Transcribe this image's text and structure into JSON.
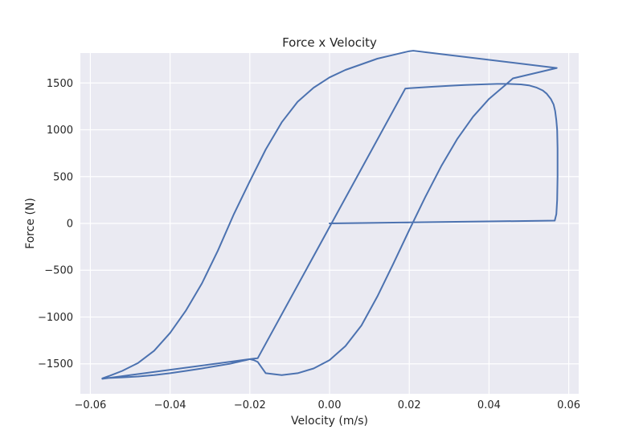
{
  "chart_data": {
    "type": "line",
    "title": "Force x Velocity",
    "xlabel": "Velocity (m/s)",
    "ylabel": "Force (N)",
    "xlim": [
      -0.0625,
      0.0625
    ],
    "ylim": [
      -1820,
      1820
    ],
    "x_ticks": [
      -0.06,
      -0.04,
      -0.02,
      0.0,
      0.02,
      0.04,
      0.06
    ],
    "x_tick_labels": [
      "−0.06",
      "−0.04",
      "−0.02",
      "0.00",
      "0.02",
      "0.04",
      "0.06"
    ],
    "y_ticks": [
      -1500,
      -1000,
      -500,
      0,
      500,
      1000,
      1500
    ],
    "y_tick_labels": [
      "−1500",
      "−1000",
      "−500",
      "0",
      "500",
      "1000",
      "1500"
    ],
    "grid": true,
    "legend": "none",
    "colors": {
      "plot_background": "#eaeaf2",
      "grid": "#ffffff",
      "line": "#4c72b0",
      "text": "#262626"
    },
    "series": [
      {
        "x": [
          0.0,
          0.0565,
          0.0569,
          0.0571,
          0.0572,
          0.0572,
          0.0571,
          0.0569,
          0.0566,
          0.0562,
          0.0555,
          0.0545,
          0.0535,
          0.052,
          0.05,
          0.048,
          0.045,
          0.042,
          0.038,
          0.034,
          0.03,
          0.026,
          0.022,
          0.02,
          0.019,
          -0.018,
          -0.019,
          -0.02,
          -0.021,
          -0.022,
          -0.023,
          -0.025,
          -0.028,
          -0.032,
          -0.036,
          -0.04,
          -0.044,
          -0.048,
          -0.052,
          -0.055,
          -0.057,
          -0.055,
          -0.052,
          -0.048,
          -0.044,
          -0.04,
          -0.036,
          -0.032,
          -0.028,
          -0.024,
          -0.02,
          -0.016,
          -0.012,
          -0.008,
          -0.004,
          0.0,
          0.004,
          0.008,
          0.012,
          0.016,
          0.019,
          0.02,
          0.021,
          0.057,
          0.052,
          0.046,
          0.044,
          0.04,
          0.036,
          0.032,
          0.028,
          0.024,
          0.02,
          0.016,
          0.012,
          0.008,
          0.004,
          0.0,
          -0.004,
          -0.008,
          -0.012,
          -0.016,
          -0.018,
          -0.019,
          -0.02,
          -0.057
        ],
        "y": [
          0,
          30,
          100,
          250,
          500,
          800,
          1000,
          1100,
          1200,
          1270,
          1330,
          1385,
          1420,
          1450,
          1475,
          1485,
          1490,
          1490,
          1485,
          1478,
          1470,
          1460,
          1450,
          1445,
          1440,
          -1440,
          -1445,
          -1450,
          -1460,
          -1470,
          -1480,
          -1500,
          -1520,
          -1550,
          -1575,
          -1600,
          -1620,
          -1635,
          -1645,
          -1650,
          -1655,
          -1625,
          -1575,
          -1490,
          -1360,
          -1170,
          -930,
          -640,
          -290,
          100,
          450,
          790,
          1080,
          1300,
          1450,
          1560,
          1640,
          1700,
          1760,
          1800,
          1830,
          1840,
          1845,
          1660,
          1610,
          1550,
          1475,
          1330,
          1140,
          900,
          610,
          280,
          -70,
          -430,
          -780,
          -1090,
          -1310,
          -1460,
          -1550,
          -1600,
          -1620,
          -1600,
          -1480,
          -1460,
          -1450,
          -1660
        ]
      }
    ]
  }
}
